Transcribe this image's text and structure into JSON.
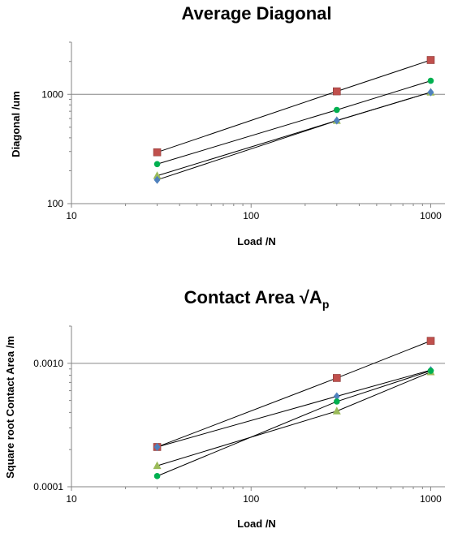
{
  "chart_data": [
    {
      "type": "scatter",
      "title": "Average Diagonal",
      "xlabel": "Load /N",
      "ylabel": "Diagonal /um",
      "x_scale": "log",
      "y_scale": "log",
      "xlim": [
        10,
        1200
      ],
      "ylim": [
        100,
        3000
      ],
      "x_ticks": [
        10,
        100,
        1000
      ],
      "x_tick_labels": [
        "10",
        "100",
        "1000"
      ],
      "y_ticks": [
        100,
        1000
      ],
      "y_tick_labels": [
        "100",
        "1000"
      ],
      "gridlines_y": [
        1000
      ],
      "legend": "none",
      "trendlines": true,
      "x": [
        30,
        300,
        1000
      ],
      "series": [
        {
          "marker": "square",
          "color": "#c0504d",
          "values": [
            295,
            1065,
            2060
          ]
        },
        {
          "marker": "circle",
          "color": "#00b050",
          "values": [
            230,
            720,
            1330
          ]
        },
        {
          "marker": "triangle",
          "color": "#9bbb59",
          "values": [
            180,
            575,
            1045
          ]
        },
        {
          "marker": "diamond",
          "color": "#4f81bd",
          "values": [
            165,
            575,
            1045
          ]
        }
      ]
    },
    {
      "type": "scatter",
      "title": "Contact Area √A",
      "title_subscript": "p",
      "xlabel": "Load /N",
      "ylabel": "Square root Contact Area /m",
      "x_scale": "log",
      "y_scale": "log",
      "xlim": [
        10,
        1200
      ],
      "ylim": [
        0.0001,
        0.002
      ],
      "x_ticks": [
        10,
        100,
        1000
      ],
      "x_tick_labels": [
        "10",
        "100",
        "1000"
      ],
      "y_ticks": [
        0.0001,
        0.001
      ],
      "y_tick_labels": [
        "0.0001",
        "0.0010"
      ],
      "gridlines_y": [
        0.001
      ],
      "legend": "none",
      "trendlines": true,
      "x": [
        30,
        300,
        1000
      ],
      "series": [
        {
          "marker": "square",
          "color": "#c0504d",
          "values": [
            0.00021,
            0.00076,
            0.00152
          ]
        },
        {
          "marker": "diamond",
          "color": "#4f81bd",
          "values": [
            0.00021,
            0.00054,
            0.00088
          ]
        },
        {
          "marker": "triangle",
          "color": "#9bbb59",
          "values": [
            0.000148,
            0.00041,
            0.00085
          ]
        },
        {
          "marker": "circle",
          "color": "#00b050",
          "values": [
            0.000122,
            0.00049,
            0.00087
          ]
        }
      ]
    }
  ]
}
